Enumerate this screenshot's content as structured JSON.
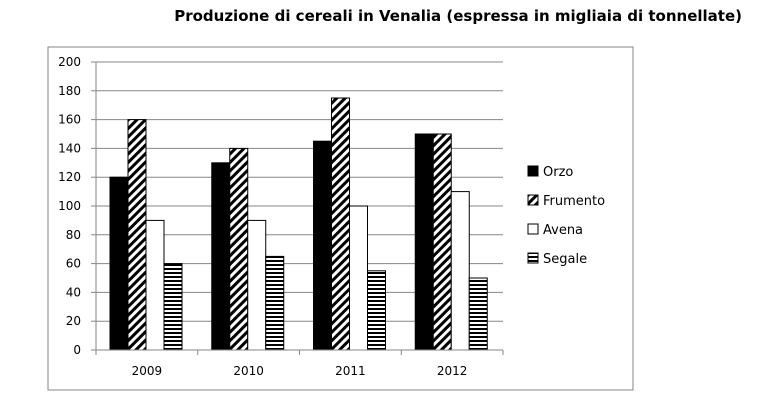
{
  "chart_data": {
    "type": "bar",
    "title": "Produzione di cereali in Venalia (espressa in migliaia di tonnellate)",
    "categories": [
      "2009",
      "2010",
      "2011",
      "2012"
    ],
    "series": [
      {
        "name": "Orzo",
        "values": [
          120,
          130,
          145,
          150
        ],
        "pattern": "solid"
      },
      {
        "name": "Frumento",
        "values": [
          160,
          140,
          175,
          150
        ],
        "pattern": "diagonal"
      },
      {
        "name": "Avena",
        "values": [
          90,
          90,
          100,
          110
        ],
        "pattern": "white"
      },
      {
        "name": "Segale",
        "values": [
          60,
          65,
          55,
          50
        ],
        "pattern": "horizontal"
      }
    ],
    "ylim": [
      0,
      200
    ],
    "yticks": [
      "0",
      "20",
      "40",
      "60",
      "80",
      "100",
      "120",
      "140",
      "160",
      "180",
      "200"
    ],
    "grid": true,
    "legend": "right"
  }
}
